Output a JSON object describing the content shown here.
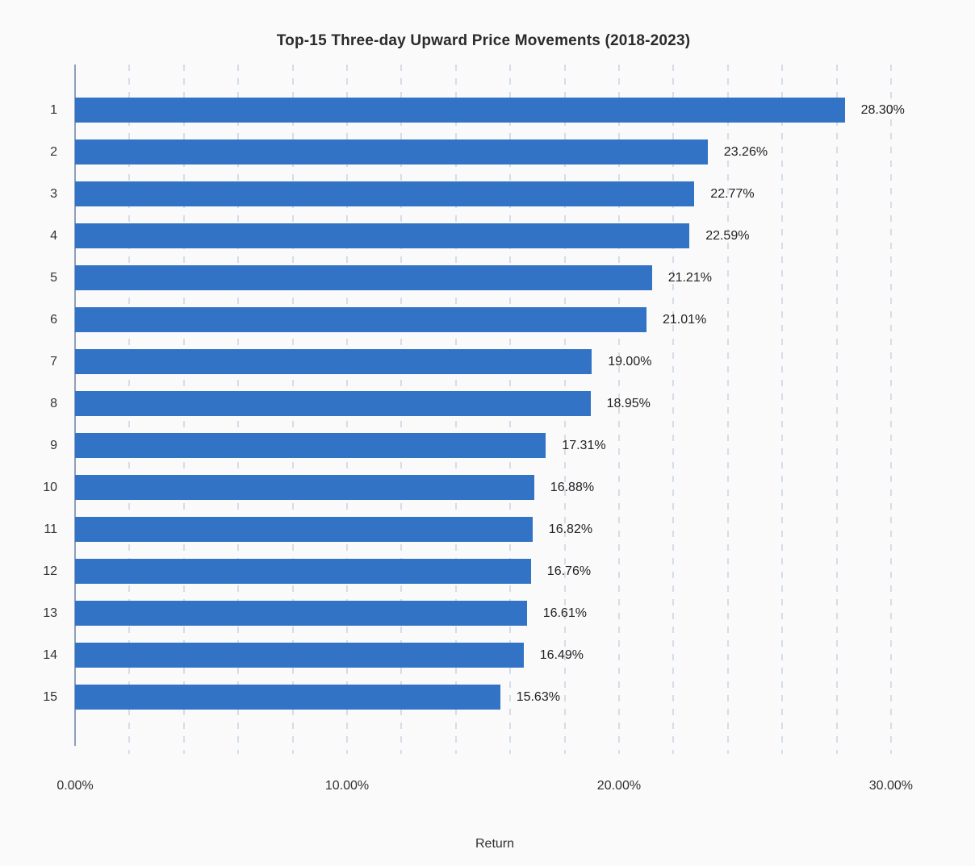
{
  "chart_data": {
    "type": "bar",
    "orientation": "horizontal",
    "title": "Top-15 Three-day Upward Price Movements (2018-2023)",
    "xlabel": "Return",
    "ylabel": "",
    "categories": [
      "1",
      "2",
      "3",
      "4",
      "5",
      "6",
      "7",
      "8",
      "9",
      "10",
      "11",
      "12",
      "13",
      "14",
      "15"
    ],
    "values": [
      28.3,
      23.26,
      22.77,
      22.59,
      21.21,
      21.01,
      19.0,
      18.95,
      17.31,
      16.88,
      16.82,
      16.76,
      16.61,
      16.49,
      15.63
    ],
    "value_labels": [
      "28.30%",
      "23.26%",
      "22.77%",
      "22.59%",
      "21.21%",
      "21.01%",
      "19.00%",
      "18.95%",
      "17.31%",
      "16.88%",
      "16.82%",
      "16.76%",
      "16.61%",
      "16.49%",
      "15.63%"
    ],
    "x_tick_labels": [
      "0.00%",
      "10.00%",
      "20.00%",
      "30.00%"
    ],
    "x_tick_values": [
      0,
      10,
      20,
      30
    ],
    "xlim": [
      0,
      33
    ],
    "grid_step_percent": 2,
    "grid_max_percent": 30,
    "grid_on": true,
    "legend": "none",
    "colors": {
      "bar": "#3273c5",
      "gridline": "#d6dde8",
      "axis_line": "#8e9fba",
      "background": "#fafafa",
      "title_text": "#2b2b2b",
      "label_text": "#222222"
    }
  }
}
